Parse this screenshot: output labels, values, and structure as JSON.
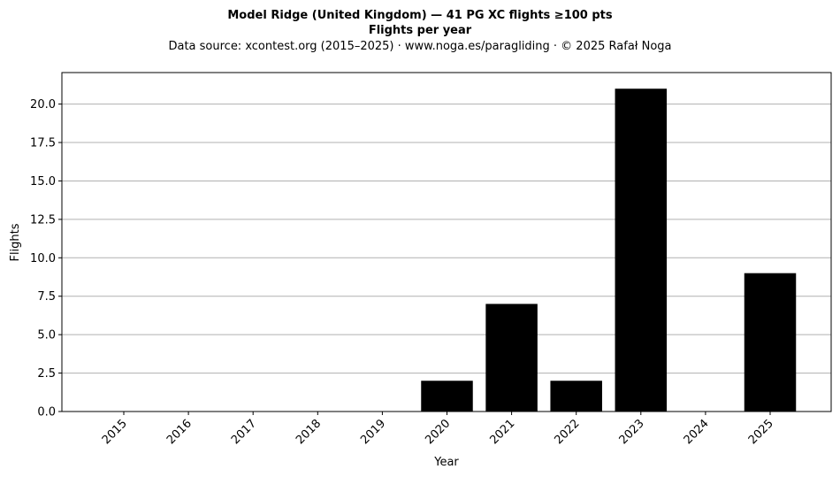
{
  "chart_data": {
    "type": "bar",
    "title": "Model Ridge (United Kingdom)  —  41 PG XC flights ≥100 pts",
    "subtitle": "Flights per year",
    "source": "Data source: xcontest.org (2015–2025)  ·  www.noga.es/paragliding  ·  © 2025 Rafał Noga",
    "xlabel": "Year",
    "ylabel": "Flights",
    "categories": [
      "2015",
      "2016",
      "2017",
      "2018",
      "2019",
      "2020",
      "2021",
      "2022",
      "2023",
      "2024",
      "2025"
    ],
    "values": [
      0,
      0,
      0,
      0,
      0,
      2,
      7,
      2,
      21,
      0,
      9
    ],
    "ylim": [
      0,
      22.05
    ],
    "yticks": [
      0,
      2.5,
      5,
      7.5,
      10,
      12.5,
      15,
      17.5,
      20
    ],
    "ytick_labels": [
      "0.0",
      "2.5",
      "5.0",
      "7.5",
      "10.0",
      "12.5",
      "15.0",
      "17.5",
      "20.0"
    ],
    "grid": "y",
    "bar_color": "#000000",
    "grid_color": "#b0b0b0"
  }
}
